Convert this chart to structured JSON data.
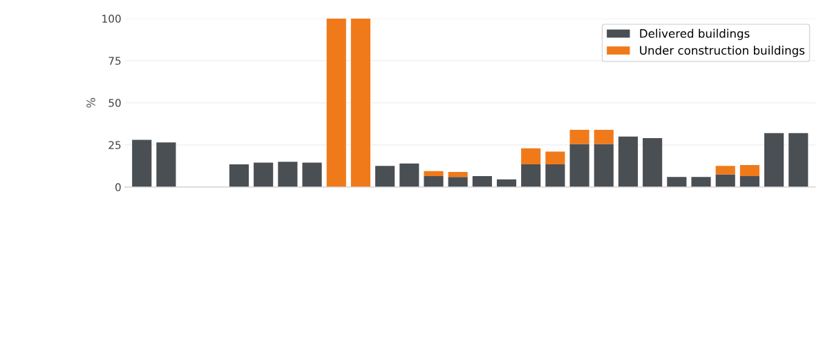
{
  "chart_data": {
    "type": "bar",
    "stacked": true,
    "ylabel": "%",
    "categories": [
      null,
      null,
      null,
      null,
      null,
      null,
      null,
      null,
      null,
      null,
      null,
      null,
      null,
      null,
      null,
      null,
      null,
      null,
      null,
      null,
      null,
      null,
      null,
      null,
      null,
      null,
      null,
      null
    ],
    "series": [
      {
        "name": "Delivered buildings",
        "color": "#4a4f54",
        "values": [
          28,
          26.5,
          0,
          0,
          13.5,
          14.5,
          15,
          14.5,
          0,
          0,
          12.5,
          14,
          6.5,
          6,
          6.5,
          4.5,
          13.5,
          13.5,
          25.5,
          25.5,
          30,
          29,
          6,
          6,
          7.5,
          6.5,
          32,
          32
        ]
      },
      {
        "name": "Under construction buildings",
        "color": "#f07a1a",
        "values": [
          0,
          0,
          0,
          0,
          0,
          0,
          0,
          0,
          100,
          100,
          0,
          0,
          3,
          3,
          0,
          0,
          9.5,
          7.5,
          8.5,
          8.5,
          0,
          0,
          0,
          0,
          5,
          6.5,
          0,
          0
        ]
      }
    ],
    "ylim": [
      0,
      100
    ],
    "yticks": [
      0,
      25,
      50,
      75,
      100
    ],
    "grid": "y",
    "legend": "top right"
  }
}
